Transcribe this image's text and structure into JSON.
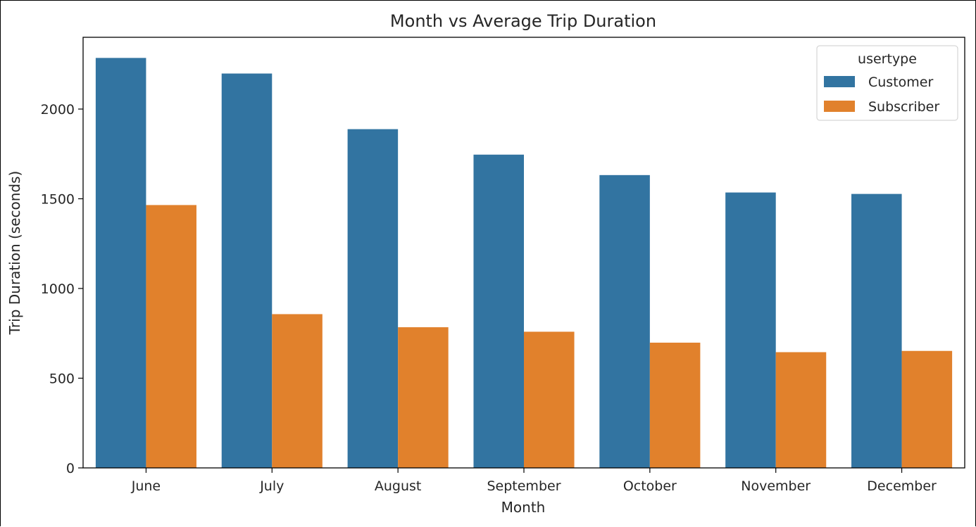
{
  "chart_data": {
    "type": "bar",
    "title": "Month vs Average Trip Duration",
    "xlabel": "Month",
    "ylabel": "Trip Duration (seconds)",
    "categories": [
      "June",
      "July",
      "August",
      "September",
      "October",
      "November",
      "December"
    ],
    "series": [
      {
        "name": "Customer",
        "color": "#3274a1",
        "values": [
          2285,
          2198,
          1888,
          1746,
          1632,
          1535,
          1527
        ]
      },
      {
        "name": "Subscriber",
        "color": "#e1812c",
        "values": [
          1465,
          857,
          784,
          759,
          698,
          645,
          652
        ]
      }
    ],
    "ylim": [
      0,
      2400
    ],
    "yticks": [
      0,
      500,
      1000,
      1500,
      2000
    ],
    "grid": false,
    "legend": {
      "title": "usertype",
      "placement": "top-right"
    }
  }
}
